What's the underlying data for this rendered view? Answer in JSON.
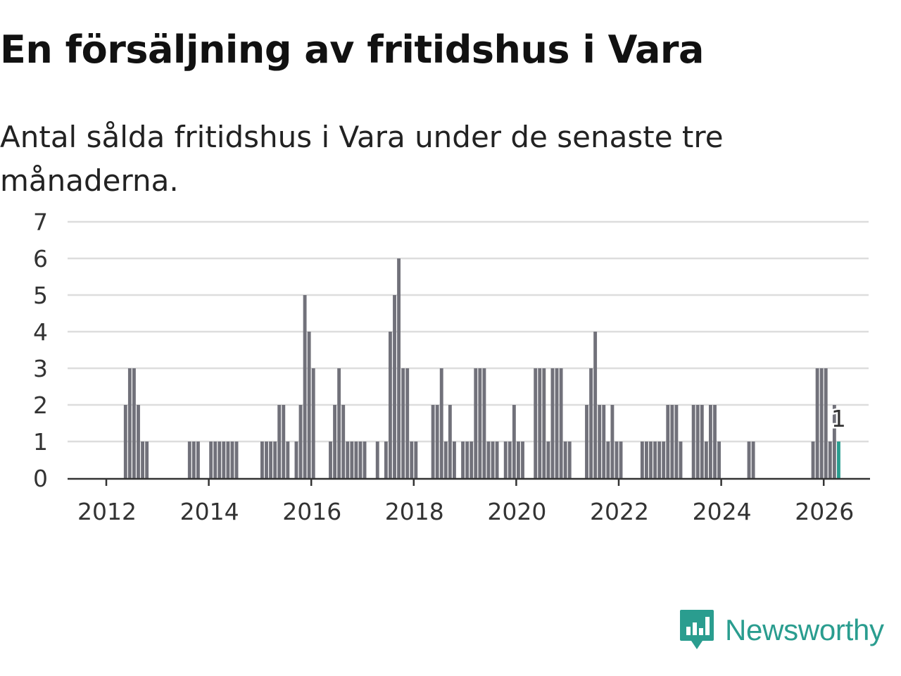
{
  "title": "En försäljning av fritidshus i Vara",
  "subtitle": "Antal sålda fritidshus i Vara under de senaste tre månaderna.",
  "brand": {
    "name": "Newsworthy",
    "color": "#2a9d8f",
    "icon": "newsworthy-logo-icon"
  },
  "colors": {
    "bar": "#71717a",
    "highlight": "#2a9d8f",
    "grid": "#dddddd",
    "axis": "#333333"
  },
  "chart_data": {
    "type": "bar",
    "x_unit": "month",
    "x_start": "2011-01",
    "x_end": "2026-03",
    "ylim": [
      0,
      7
    ],
    "y_ticks": [
      0,
      1,
      2,
      3,
      4,
      5,
      6,
      7
    ],
    "x_ticks": [
      "2012",
      "2014",
      "2016",
      "2018",
      "2020",
      "2022",
      "2024",
      "2026"
    ],
    "grid": true,
    "values": {
      "2012-05": 2,
      "2012-06": 3,
      "2012-07": 3,
      "2012-08": 2,
      "2012-09": 1,
      "2012-10": 1,
      "2013-08": 1,
      "2013-09": 1,
      "2013-10": 1,
      "2014-01": 1,
      "2014-02": 1,
      "2014-03": 1,
      "2014-04": 1,
      "2014-05": 1,
      "2014-06": 1,
      "2014-07": 1,
      "2015-01": 1,
      "2015-02": 1,
      "2015-03": 1,
      "2015-04": 1,
      "2015-05": 2,
      "2015-06": 2,
      "2015-07": 1,
      "2015-09": 1,
      "2015-10": 2,
      "2015-11": 5,
      "2015-12": 4,
      "2016-01": 3,
      "2016-05": 1,
      "2016-06": 2,
      "2016-07": 3,
      "2016-08": 2,
      "2016-09": 1,
      "2016-10": 1,
      "2016-11": 1,
      "2016-12": 1,
      "2017-01": 1,
      "2017-04": 1,
      "2017-06": 1,
      "2017-07": 4,
      "2017-08": 5,
      "2017-09": 6,
      "2017-10": 3,
      "2017-11": 3,
      "2017-12": 1,
      "2018-01": 1,
      "2018-05": 2,
      "2018-06": 2,
      "2018-07": 3,
      "2018-08": 1,
      "2018-09": 2,
      "2018-10": 1,
      "2018-12": 1,
      "2019-01": 1,
      "2019-02": 1,
      "2019-03": 3,
      "2019-04": 3,
      "2019-05": 3,
      "2019-06": 1,
      "2019-07": 1,
      "2019-08": 1,
      "2019-10": 1,
      "2019-11": 1,
      "2019-12": 2,
      "2020-01": 1,
      "2020-02": 1,
      "2020-05": 3,
      "2020-06": 3,
      "2020-07": 3,
      "2020-08": 1,
      "2020-09": 3,
      "2020-10": 3,
      "2020-11": 3,
      "2020-12": 1,
      "2021-01": 1,
      "2021-05": 2,
      "2021-06": 3,
      "2021-07": 4,
      "2021-08": 2,
      "2021-09": 2,
      "2021-10": 1,
      "2021-11": 2,
      "2021-12": 1,
      "2022-01": 1,
      "2022-06": 1,
      "2022-07": 1,
      "2022-08": 1,
      "2022-09": 1,
      "2022-10": 1,
      "2022-11": 1,
      "2022-12": 2,
      "2023-01": 2,
      "2023-02": 2,
      "2023-03": 1,
      "2023-06": 2,
      "2023-07": 2,
      "2023-08": 2,
      "2023-09": 1,
      "2023-10": 2,
      "2023-11": 2,
      "2023-12": 1,
      "2024-07": 1,
      "2024-08": 1,
      "2025-10": 1,
      "2025-11": 3,
      "2025-12": 3,
      "2026-01": 3,
      "2026-02": 1,
      "2026-03": 2,
      "2026-04": 1
    },
    "highlight": {
      "x": "2026-04",
      "value": 1,
      "label": "1"
    }
  }
}
